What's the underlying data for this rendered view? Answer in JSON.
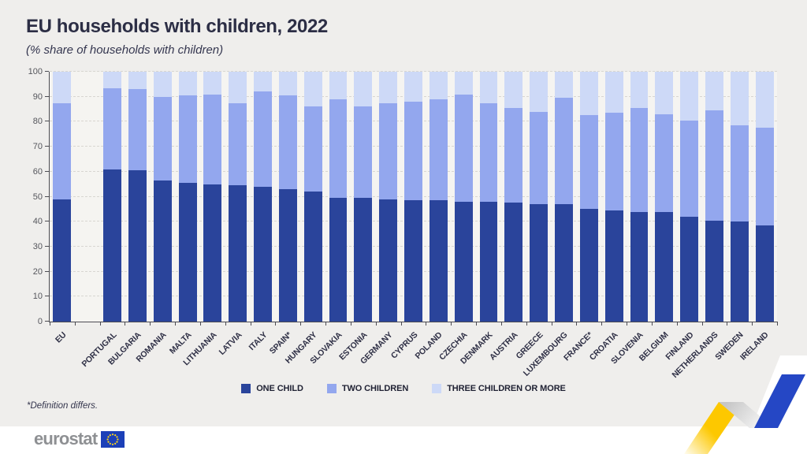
{
  "header": {
    "title": "EU households with children, 2022",
    "subtitle": "(%  share of households with children)"
  },
  "footnote": {
    "text": "*Definition differs."
  },
  "footer": {
    "logo_text": "eurostat",
    "flag_icon": "eu-flag-icon"
  },
  "decor": {
    "ribbon_yellow": "#fdc800",
    "ribbon_blue": "#2547c5",
    "flag_blue": "#1c40b8",
    "star_yellow": "#ffd617",
    "background": "#efeeec",
    "plot_background": "#f5f4f1"
  },
  "chart_data": {
    "type": "bar",
    "stacked": true,
    "title": "EU households with children, 2022",
    "subtitle": "(% share of households with children)",
    "xlabel": "",
    "ylabel": "",
    "ylim": [
      0,
      100
    ],
    "yticks": [
      0,
      10,
      20,
      30,
      40,
      50,
      60,
      70,
      80,
      90,
      100
    ],
    "grid": "horizontal-dashed",
    "legend_position": "bottom",
    "gap_after_index": 0,
    "categories": [
      "EU",
      "PORTUGAL",
      "BULGARIA",
      "ROMANIA",
      "MALTA",
      "LITHUANIA",
      "LATVIA",
      "ITALY",
      "SPAIN*",
      "HUNGARY",
      "SLOVAKIA",
      "ESTONIA",
      "GERMANY",
      "CYPRUS",
      "POLAND",
      "CZECHIA",
      "DENMARK",
      "AUSTRIA",
      "GREECE",
      "LUXEMBOURG",
      "FRANCE*",
      "CROATIA",
      "SLOVENIA",
      "BELGIUM",
      "FINLAND",
      "NETHERLANDS",
      "SWEDEN",
      "IRELAND"
    ],
    "series": [
      {
        "name": "ONE CHILD",
        "color": "#2a449b",
        "values": [
          49,
          61,
          60.5,
          56.5,
          55.5,
          55,
          54.5,
          54,
          53,
          52,
          49.5,
          49.5,
          49,
          48.5,
          48.5,
          48,
          48,
          47.5,
          47,
          47,
          45,
          44.5,
          44,
          44,
          42,
          40.5,
          40,
          38.5
        ]
      },
      {
        "name": "TWO CHILDREN",
        "color": "#93a7ee",
        "values": [
          38.5,
          32.5,
          32.5,
          33.5,
          35,
          36,
          33,
          38,
          37.5,
          34,
          39.5,
          36.5,
          38.5,
          39.5,
          40.5,
          43,
          39.5,
          38,
          37,
          42.5,
          37.5,
          39,
          41.5,
          39,
          38.5,
          44,
          38.5,
          39
        ]
      },
      {
        "name": "THREE CHILDREN OR MORE",
        "color": "#cdd9f7",
        "values": [
          12.5,
          6.5,
          7,
          10,
          9.5,
          9,
          12.5,
          8,
          9.5,
          14,
          11,
          14,
          12.5,
          12,
          11,
          9,
          12.5,
          14.5,
          16,
          10.5,
          17.5,
          16.5,
          14.5,
          17,
          19.5,
          15.5,
          21.5,
          22.5
        ]
      }
    ]
  }
}
